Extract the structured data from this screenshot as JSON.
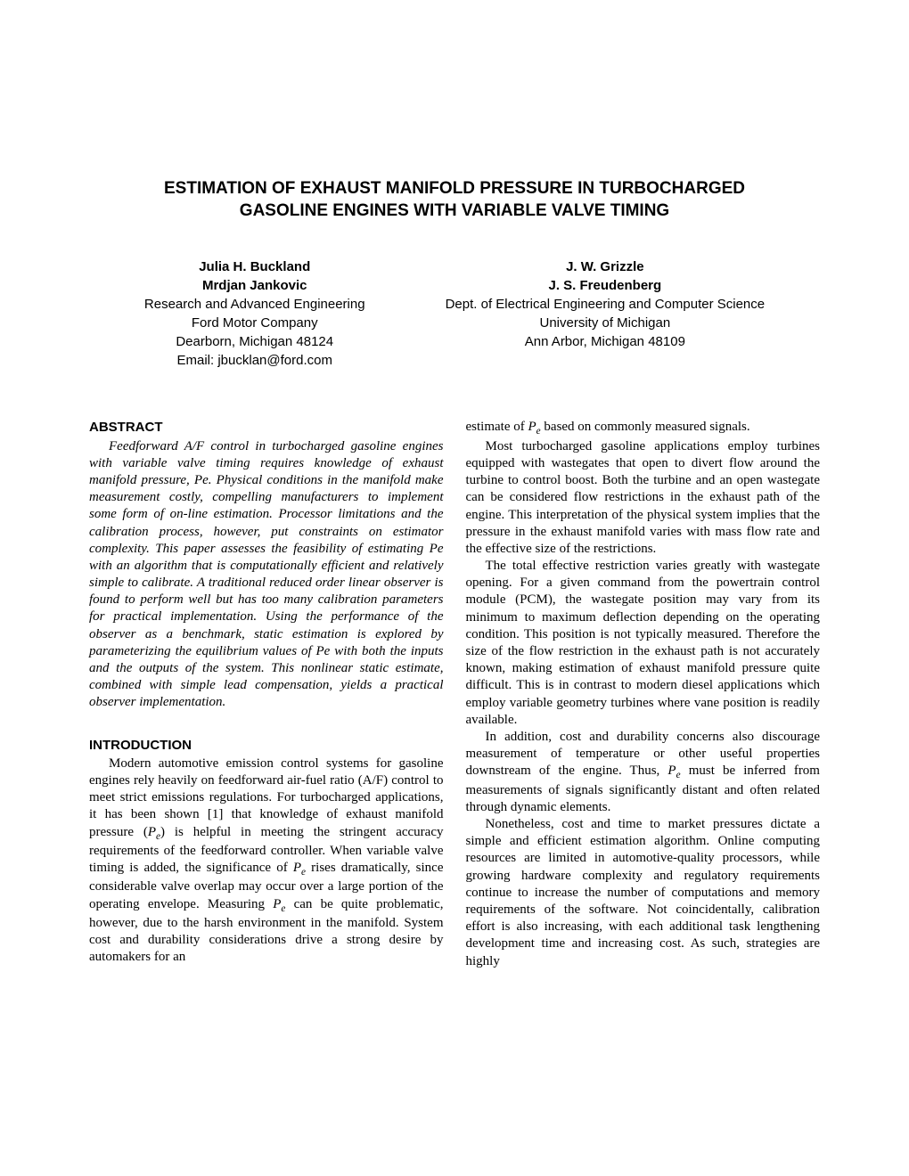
{
  "title_line1": "ESTIMATION OF EXHAUST MANIFOLD PRESSURE IN TURBOCHARGED",
  "title_line2": "GASOLINE ENGINES WITH VARIABLE VALVE TIMING",
  "authors": {
    "left": {
      "name1": "Julia H. Buckland",
      "name2": "Mrdjan Jankovic",
      "affil1": "Research and Advanced Engineering",
      "affil2": "Ford Motor Company",
      "affil3": "Dearborn, Michigan 48124",
      "email": "Email: jbucklan@ford.com"
    },
    "right": {
      "name1": "J. W. Grizzle",
      "name2": "J. S. Freudenberg",
      "affil1": "Dept. of Electrical Engineering and Computer Science",
      "affil2": "University of Michigan",
      "affil3": "Ann Arbor, Michigan 48109"
    }
  },
  "abstract_heading": "ABSTRACT",
  "abstract_text": "Feedforward A/F control in turbocharged gasoline engines with variable valve timing requires knowledge of exhaust manifold pressure, Pe. Physical conditions in the manifold make measurement costly, compelling manufacturers to implement some form of on-line estimation. Processor limitations and the calibration process, however, put constraints on estimator complexity. This paper assesses the feasibility of estimating Pe with an algorithm that is computationally efficient and relatively simple to calibrate. A traditional reduced order linear observer is found to perform well but has too many calibration parameters for practical implementation. Using the performance of the observer as a benchmark, static estimation is explored by parameterizing the equilibrium values of Pe with both the inputs and the outputs of the system. This nonlinear static estimate, combined with simple lead compensation, yields a practical observer implementation.",
  "intro_heading": "INTRODUCTION",
  "intro_p1_a": "Modern automotive emission control systems for gasoline engines rely heavily on feedforward air-fuel ratio (A/F) control to meet strict emissions regulations. For turbocharged applications, it has been shown [1] that knowledge of exhaust manifold pressure (",
  "intro_p1_b": ") is helpful in meeting the stringent accuracy requirements of the feedforward controller. When variable valve timing is added, the significance of ",
  "intro_p1_c": " rises dramatically, since considerable valve overlap may occur over a large portion of the operating envelope. Measuring ",
  "intro_p1_d": " can be quite problematic, however, due to the harsh environment in the manifold. System cost and durability considerations drive a strong desire by automakers for an",
  "col2_p1_a": "estimate of ",
  "col2_p1_b": " based on commonly measured signals.",
  "col2_p2": "Most turbocharged gasoline applications employ turbines equipped with wastegates that open to divert flow around the turbine to control boost. Both the turbine and an open wastegate can be considered flow restrictions in the exhaust path of the engine. This interpretation of the physical system implies that the pressure in the exhaust manifold varies with mass flow rate and the effective size of the restrictions.",
  "col2_p3": "The total effective restriction varies greatly with wastegate opening. For a given command from the powertrain control module (PCM), the wastegate position may vary from its minimum to maximum deflection depending on the operating condition. This position is not typically measured. Therefore the size of the flow restriction in the exhaust path is not accurately known, making estimation of exhaust manifold pressure quite difficult. This is in contrast to modern diesel applications which employ variable geometry turbines where vane position is readily available.",
  "col2_p4_a": "In addition, cost and durability concerns also discourage measurement of temperature or other useful properties downstream of the engine. Thus, ",
  "col2_p4_b": " must be inferred from measurements of signals significantly distant and often related through dynamic elements.",
  "col2_p5": "Nonetheless, cost and time to market pressures dictate a simple and efficient estimation algorithm. Online computing resources are limited in automotive-quality processors, while growing hardware complexity and regulatory requirements continue to increase the number of computations and memory requirements of the software. Not coincidentally, calibration effort is also increasing, with each additional task lengthening development time and increasing cost. As such, strategies are highly",
  "pe_symbol": "P",
  "pe_sub": "e"
}
